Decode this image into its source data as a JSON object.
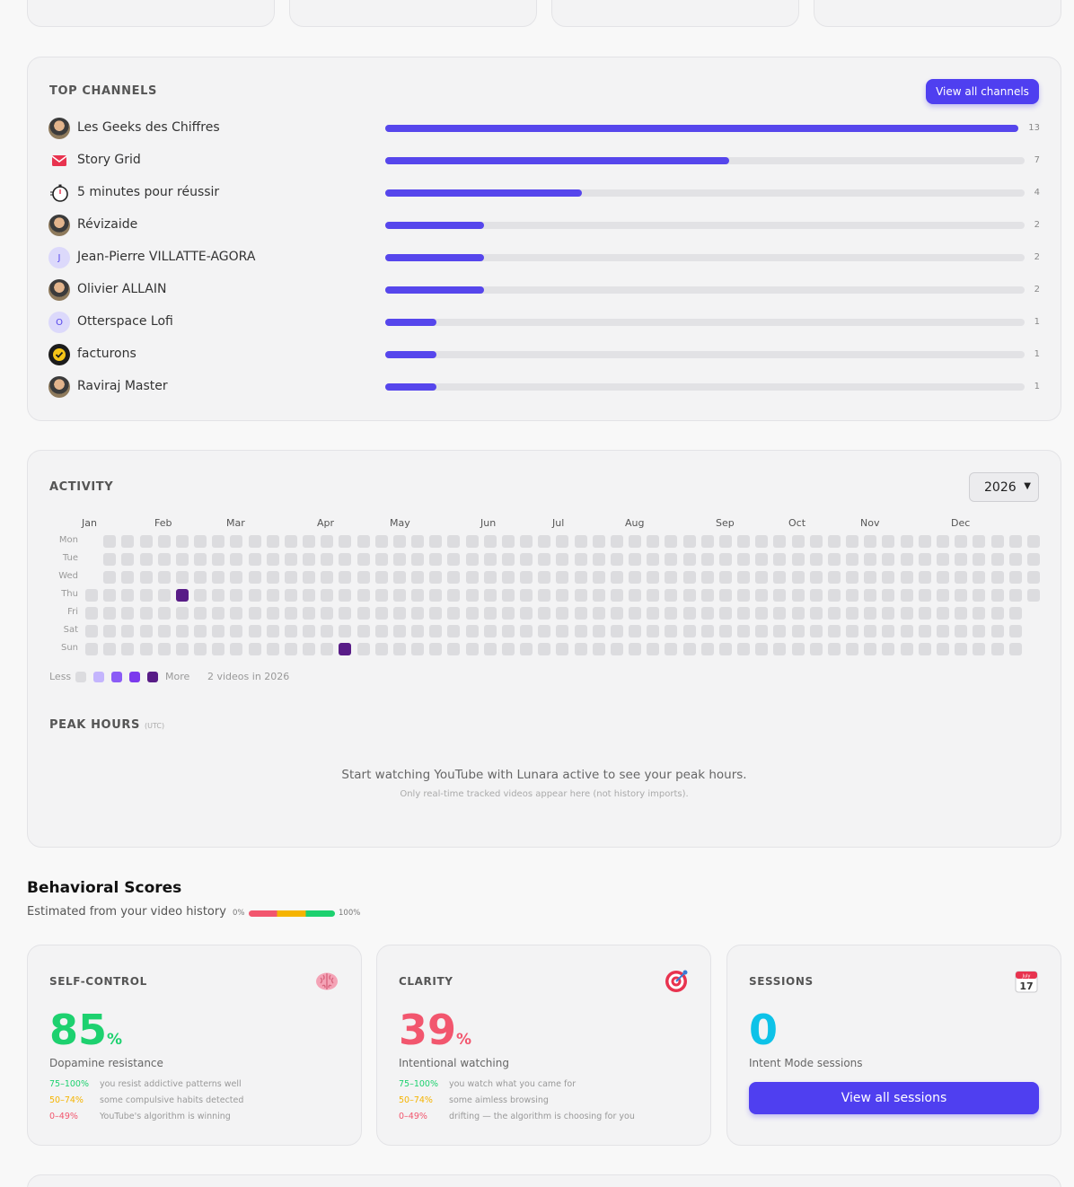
{
  "top_channels": {
    "title": "TOP CHANNELS",
    "view_all_label": "View all channels",
    "max": 13,
    "items": [
      {
        "name": "Les Geeks des Chiffres",
        "count": 13,
        "avatar": "photo-avatar"
      },
      {
        "name": "Story Grid",
        "count": 7,
        "avatar": "envelope-logo"
      },
      {
        "name": "5 minutes pour réussir",
        "count": 4,
        "avatar": "stopwatch-logo"
      },
      {
        "name": "Révizaide",
        "count": 2,
        "avatar": "photo-avatar"
      },
      {
        "name": "Jean-Pierre VILLATTE-AGORA",
        "count": 2,
        "avatar": "letter",
        "initial": "J"
      },
      {
        "name": "Olivier ALLAIN",
        "count": 2,
        "avatar": "photo-avatar"
      },
      {
        "name": "Otterspace Lofi",
        "count": 1,
        "avatar": "letter",
        "initial": "O"
      },
      {
        "name": "facturons",
        "count": 1,
        "avatar": "check-logo"
      },
      {
        "name": "Raviraj Master",
        "count": 1,
        "avatar": "photo-avatar"
      }
    ]
  },
  "activity": {
    "title": "ACTIVITY",
    "year_select": "2026",
    "months": [
      "Jan",
      "Feb",
      "Mar",
      "Apr",
      "May",
      "Jun",
      "Jul",
      "Aug",
      "Sep",
      "Oct",
      "Nov",
      "Dec"
    ],
    "days": [
      "Mon",
      "Tue",
      "Wed",
      "Thu",
      "Fri",
      "Sat",
      "Sun"
    ],
    "active_days": [
      {
        "date": "2026-02-05",
        "level": 4
      },
      {
        "date": "2026-04-12",
        "level": 4
      }
    ],
    "legend_less": "Less",
    "legend_more": "More",
    "summary": "2 videos in 2026",
    "colors": {
      "empty": "#dcdcdf",
      "l1": "#c4b5fd",
      "l2": "#8b5cf6",
      "l3": "#7c3aed",
      "l4": "#581c87"
    }
  },
  "peak_hours": {
    "title": "PEAK HOURS",
    "tz": "(UTC)",
    "empty_message": "Start watching YouTube with Lunara active to see your peak hours.",
    "empty_note": "Only real-time tracked videos appear here (not history imports)."
  },
  "behavioral": {
    "title": "Behavioral Scores",
    "subtitle": "Estimated from your video history",
    "scale_min": "0%",
    "scale_max": "100%",
    "cards": [
      {
        "title": "SELF-CONTROL",
        "icon": "brain-icon",
        "value": "85",
        "unit": "%",
        "subtitle": "Dopamine resistance",
        "color": "#1dd16f",
        "scale": [
          {
            "range": "75–100%",
            "text": "you resist addictive patterns well"
          },
          {
            "range": "50–74%",
            "text": "some compulsive habits detected"
          },
          {
            "range": "0–49%",
            "text": "YouTube's algorithm is winning"
          }
        ]
      },
      {
        "title": "CLARITY",
        "icon": "target-icon",
        "value": "39",
        "unit": "%",
        "subtitle": "Intentional watching",
        "color": "#f2566e",
        "scale": [
          {
            "range": "75–100%",
            "text": "you watch what you came for"
          },
          {
            "range": "50–74%",
            "text": "some aimless browsing"
          },
          {
            "range": "0–49%",
            "text": "drifting — the algorithm is choosing for you"
          }
        ]
      },
      {
        "title": "SESSIONS",
        "icon": "calendar-icon",
        "value": "0",
        "subtitle": "Intent Mode sessions",
        "color": "#0dc2e8",
        "button_label": "View all sessions",
        "calendar_month": "July",
        "calendar_day": "17"
      }
    ],
    "scale_colors": {
      "high": "#1dd16f",
      "mid": "#f5b400",
      "low": "#f2566e"
    }
  }
}
